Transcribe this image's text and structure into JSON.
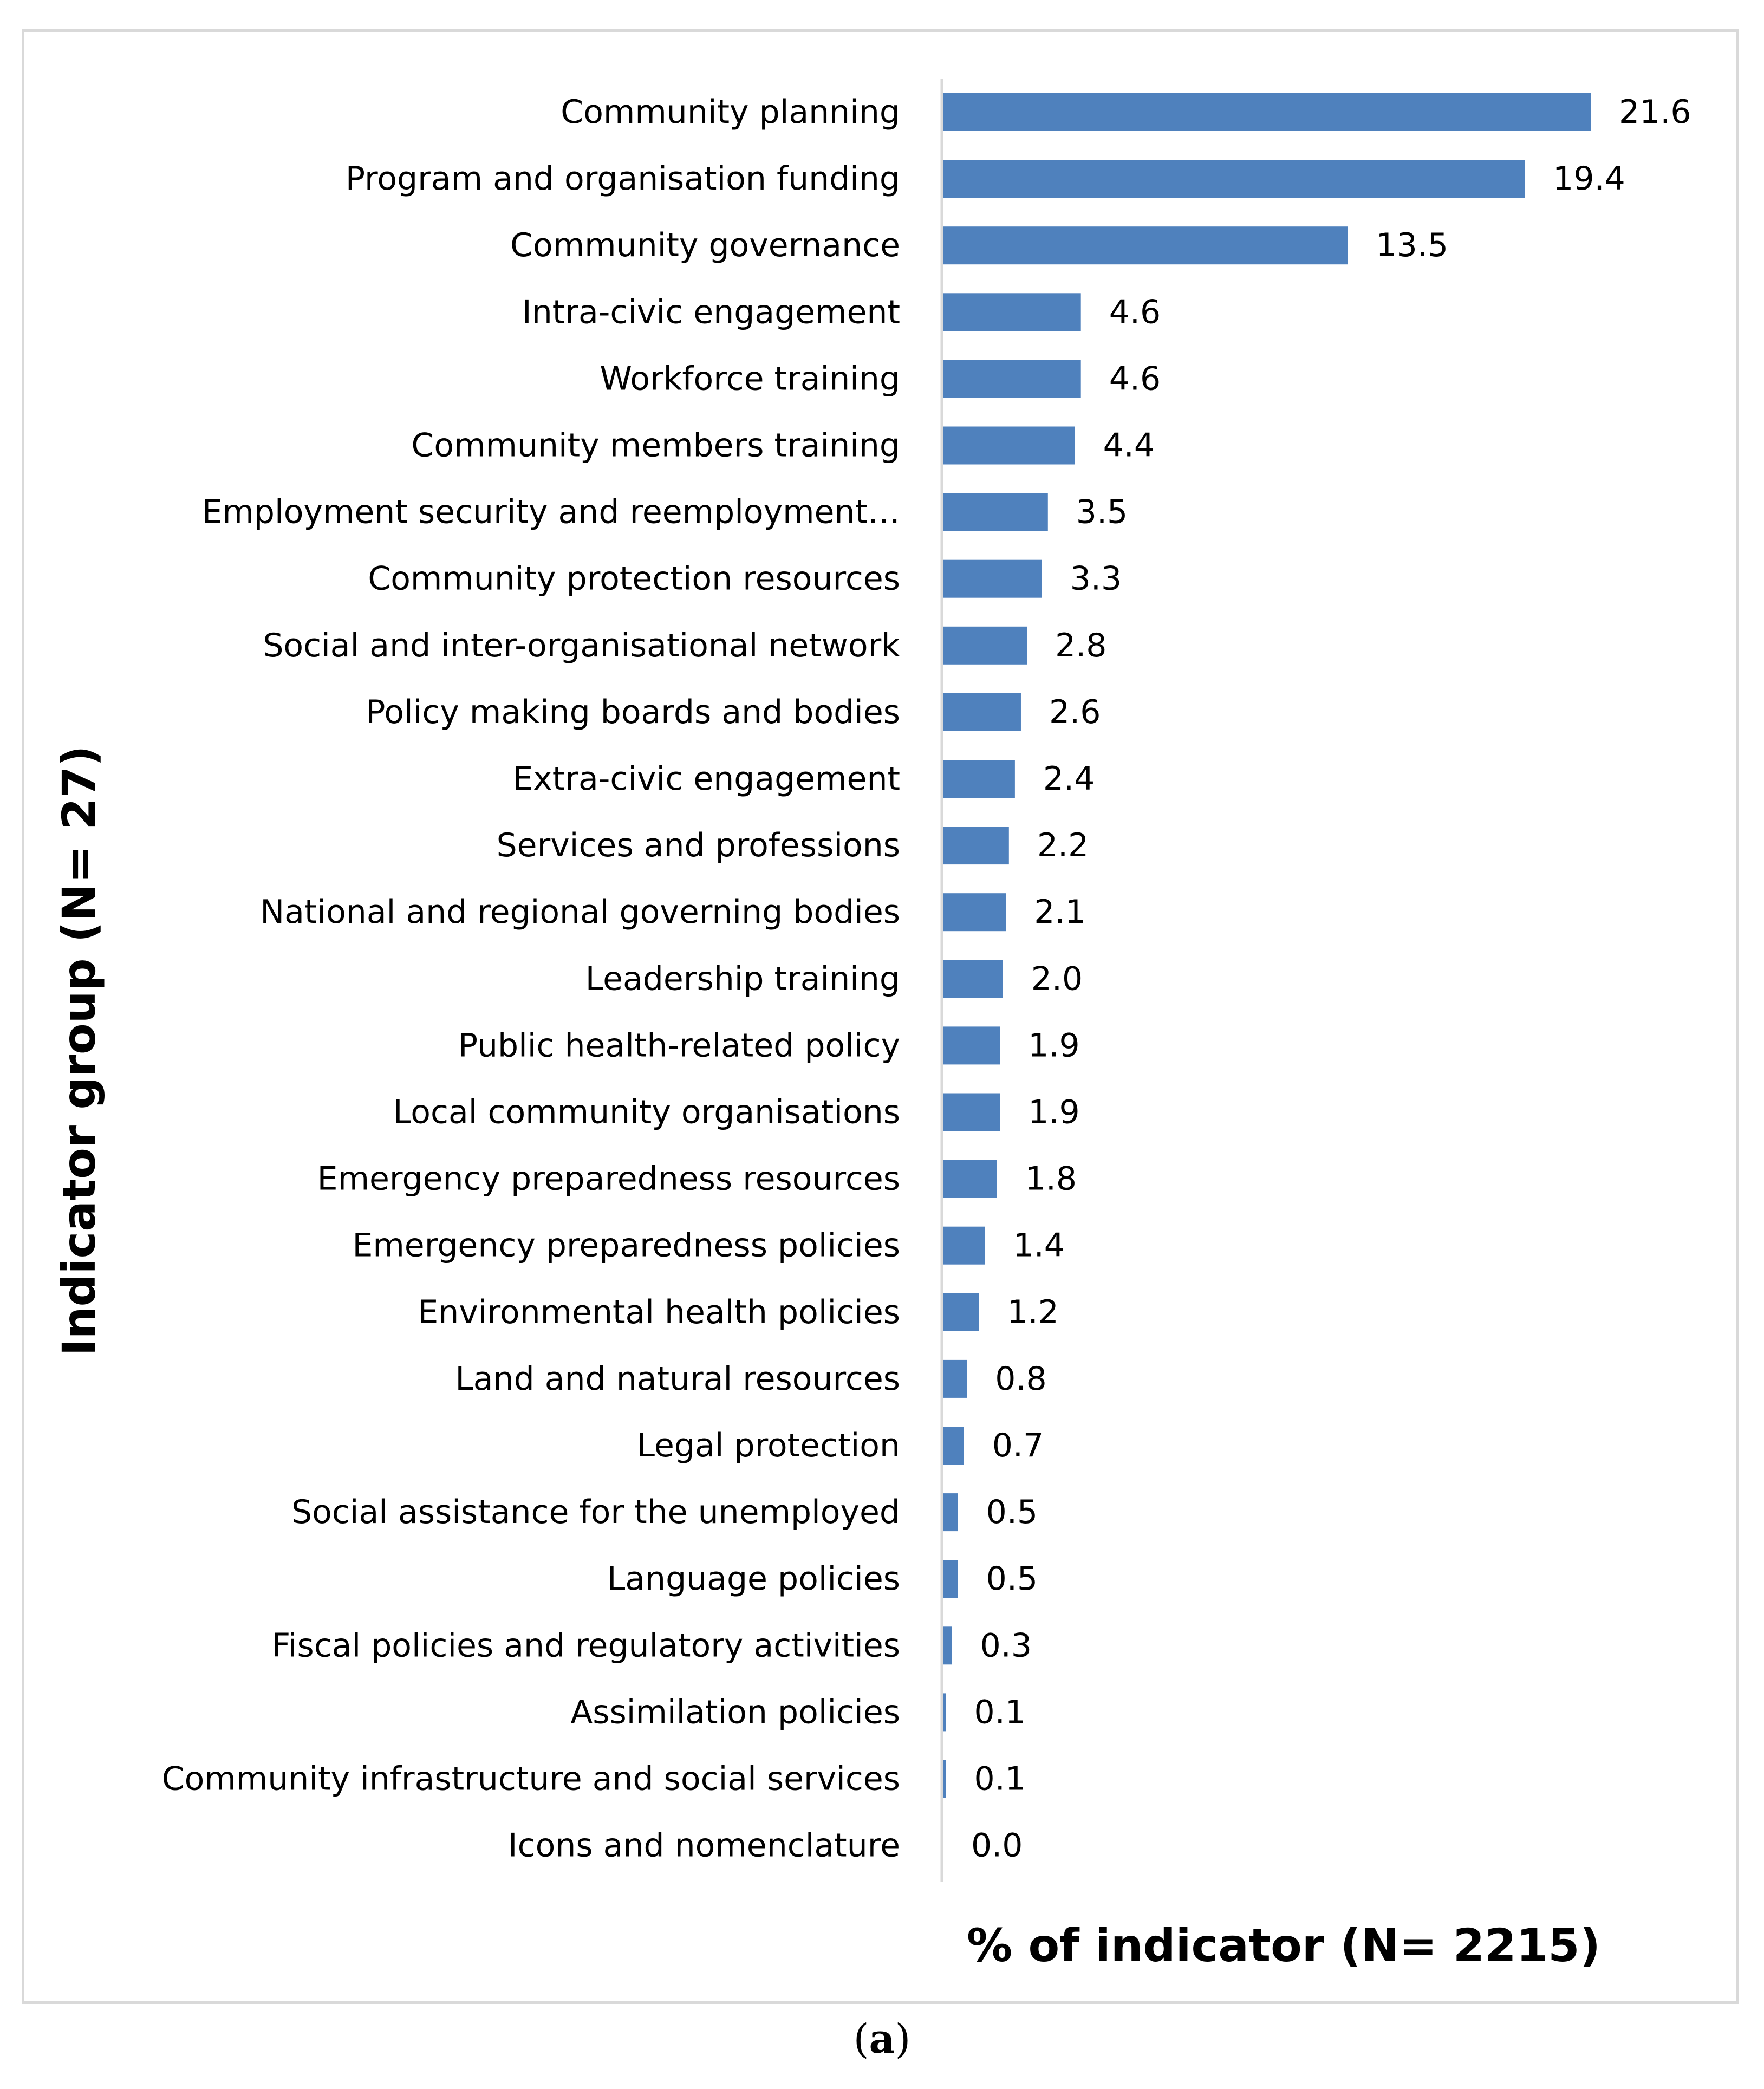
{
  "chart_data": {
    "type": "bar",
    "orientation": "horizontal",
    "title": "",
    "xlabel": "% of indicator (N= 2215)",
    "ylabel": "Indicator group (N= 27)",
    "xlim": [
      0,
      21.6
    ],
    "grid": false,
    "legend": "none",
    "bar_color": "#4f81bd",
    "categories": [
      "Community planning",
      "Program and organisation funding",
      "Community governance",
      "Intra-civic engagement",
      "Workforce training",
      "Community members training",
      "Employment security and reemployment…",
      "Community protection resources",
      "Social and inter-organisational network",
      "Policy making boards and bodies",
      "Extra-civic engagement",
      "Services and professions",
      "National and regional governing bodies",
      "Leadership training",
      "Public health-related policy",
      "Local community organisations",
      "Emergency preparedness resources",
      "Emergency preparedness policies",
      "Environmental health policies",
      "Land and natural resources",
      "Legal protection",
      "Social assistance for the unemployed",
      "Language policies",
      "Fiscal policies and regulatory activities",
      "Assimilation policies",
      "Community infrastructure and social services",
      "Icons and nomenclature"
    ],
    "values": [
      21.6,
      19.4,
      13.5,
      4.6,
      4.6,
      4.4,
      3.5,
      3.3,
      2.8,
      2.6,
      2.4,
      2.2,
      2.1,
      2.0,
      1.9,
      1.9,
      1.8,
      1.4,
      1.2,
      0.8,
      0.7,
      0.5,
      0.5,
      0.3,
      0.1,
      0.1,
      0.0
    ],
    "value_labels": [
      "21.6",
      "19.4",
      "13.5",
      "4.6",
      "4.6",
      "4.4",
      "3.5",
      "3.3",
      "2.8",
      "2.6",
      "2.4",
      "2.2",
      "2.1",
      "2.0",
      "1.9",
      "1.9",
      "1.8",
      "1.4",
      "1.2",
      "0.8",
      "0.7",
      "0.5",
      "0.5",
      "0.3",
      "0.1",
      "0.1",
      "0.0"
    ]
  },
  "caption": {
    "open": "(",
    "letter": "a",
    "close": ")"
  }
}
